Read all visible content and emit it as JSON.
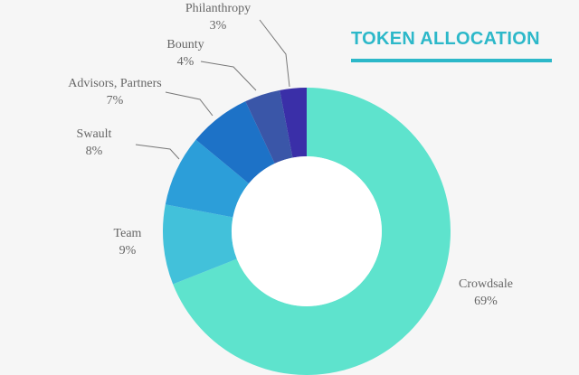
{
  "chart_data": {
    "type": "pie",
    "title": "TOKEN ALLOCATION",
    "slices": [
      {
        "label": "Crowdsale",
        "value": 69,
        "display": "69%",
        "color": "#5ee3cd"
      },
      {
        "label": "Team",
        "value": 9,
        "display": "9%",
        "color": "#42c1da"
      },
      {
        "label": "Swault",
        "value": 8,
        "display": "8%",
        "color": "#2c9ed9"
      },
      {
        "label": "Advisors, Partners",
        "value": 7,
        "display": "7%",
        "color": "#1d72c7"
      },
      {
        "label": "Bounty",
        "value": 4,
        "display": "4%",
        "color": "#3a56a8"
      },
      {
        "label": "Philanthropy",
        "value": 3,
        "display": "3%",
        "color": "#3a2fa8"
      }
    ],
    "legend": "none",
    "inner_hole": true
  }
}
